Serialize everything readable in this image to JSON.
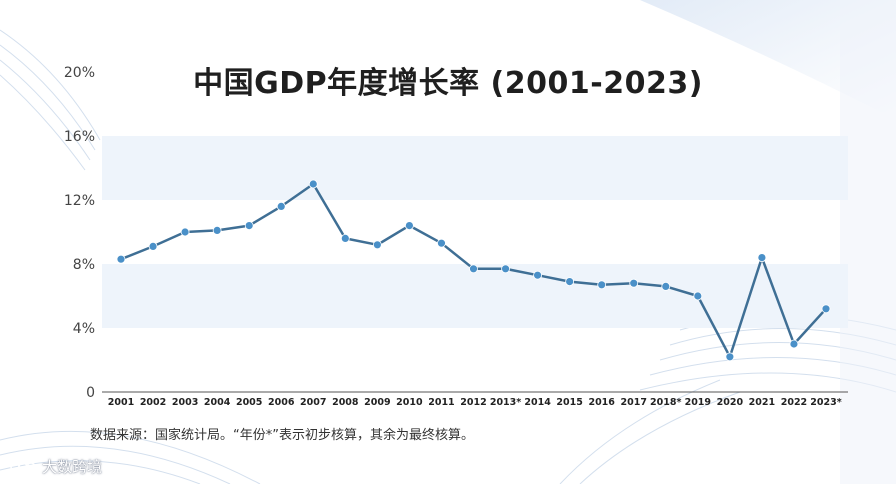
{
  "colors": {
    "line": "#3f6f95",
    "point": "#4a90c8",
    "band": "#eef4fb",
    "axis": "#444444",
    "text": "#1f1f1f"
  },
  "footer": {
    "source": "数据来源：国家统计局。“年份*”表示初步核算，其余为最终核算。"
  },
  "watermark": {
    "text": "大数跨境",
    "logo_icon": "bubble-logo-icon"
  },
  "chart_data": {
    "type": "line",
    "title": "中国GDP年度增长率 (2001-2023)",
    "xlabel": "",
    "ylabel": "",
    "categories": [
      "2001",
      "2002",
      "2003",
      "2004",
      "2005",
      "2006",
      "2007",
      "2008",
      "2009",
      "2010",
      "2011",
      "2012",
      "2013*",
      "2014",
      "2015",
      "2016",
      "2017",
      "2018*",
      "2019",
      "2020",
      "2021",
      "2022",
      "2023*"
    ],
    "series": [
      {
        "values": [
          8.3,
          9.1,
          10.0,
          10.1,
          10.4,
          11.6,
          13.0,
          9.6,
          9.2,
          10.4,
          9.3,
          7.7,
          7.7,
          7.3,
          6.9,
          6.7,
          6.8,
          6.6,
          6.0,
          2.2,
          8.4,
          3.0,
          5.2
        ]
      }
    ],
    "ylim": [
      0,
      20
    ],
    "yticks": [
      0,
      4,
      8,
      12,
      16,
      20
    ],
    "ytick_labels": [
      "0",
      "4%",
      "8%",
      "12%",
      "16%",
      "20%"
    ],
    "grid": "horizontal bands",
    "legend": "none"
  }
}
